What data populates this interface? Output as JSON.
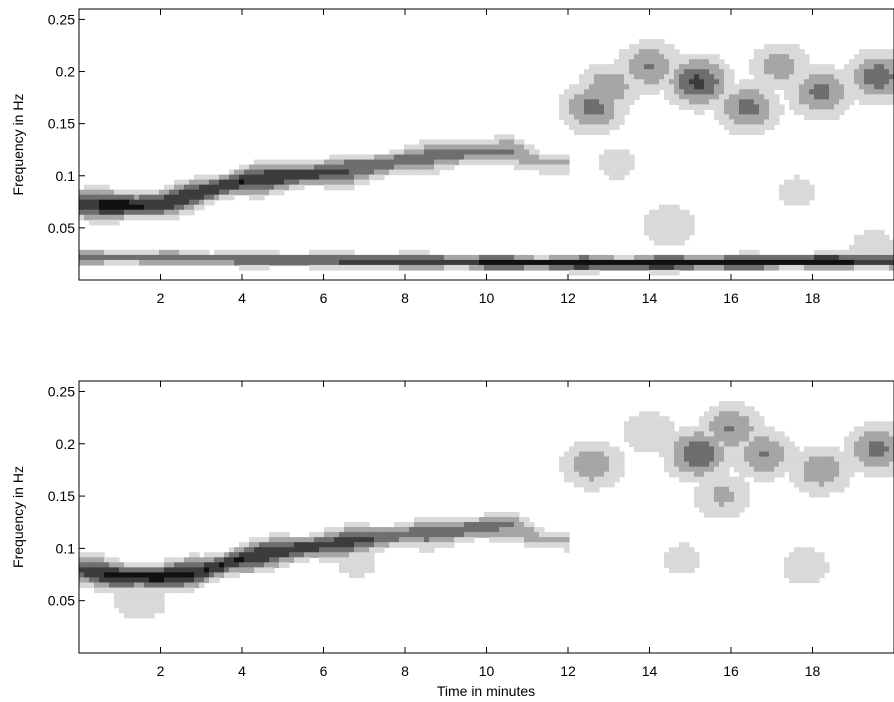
{
  "chart_data": [
    {
      "type": "heatmap",
      "subtype": "filled-contour spectrogram",
      "title": "",
      "xlabel": "",
      "ylabel": "Frequency in Hz",
      "xlim": [
        0,
        20
      ],
      "ylim": [
        0,
        0.26
      ],
      "xticks": [
        2,
        4,
        6,
        8,
        10,
        12,
        14,
        16,
        18
      ],
      "yticks": [
        0.05,
        0.1,
        0.15,
        0.2,
        0.25
      ],
      "yticklabels": [
        "0.05",
        "0.1",
        "0.15",
        "0.2",
        "0.25"
      ],
      "contour_levels": 5,
      "colormap": [
        "#ffffff",
        "#d9d9d9",
        "#a6a6a6",
        "#6e6e6e",
        "#3c3c3c",
        "#101010"
      ],
      "grid": false,
      "ridges": [
        {
          "x": [
            0,
            1,
            2,
            3,
            4,
            5,
            6,
            7,
            8,
            9,
            10,
            10.6,
            11.4
          ],
          "y": [
            0.073,
            0.071,
            0.073,
            0.084,
            0.095,
            0.099,
            0.103,
            0.107,
            0.115,
            0.12,
            0.123,
            0.124,
            0.112
          ],
          "level": [
            0.85,
            1.0,
            0.9,
            0.85,
            0.9,
            0.85,
            0.8,
            0.7,
            0.65,
            0.6,
            0.6,
            0.55,
            0.4
          ]
        },
        {
          "x": [
            0,
            2,
            4,
            6,
            8,
            10,
            12,
            14,
            16,
            18,
            20
          ],
          "y": [
            0.022,
            0.021,
            0.02,
            0.019,
            0.018,
            0.017,
            0.016,
            0.016,
            0.017,
            0.018,
            0.018
          ],
          "level": [
            0.6,
            0.65,
            0.7,
            0.75,
            0.85,
            0.9,
            0.95,
            1.0,
            1.0,
            0.95,
            0.9
          ]
        }
      ],
      "blobs": [
        {
          "x": 12.6,
          "y": 0.165,
          "level": 0.6
        },
        {
          "x": 13.0,
          "y": 0.185,
          "level": 0.5
        },
        {
          "x": 14.0,
          "y": 0.205,
          "level": 0.55
        },
        {
          "x": 15.2,
          "y": 0.19,
          "level": 0.75
        },
        {
          "x": 16.4,
          "y": 0.165,
          "level": 0.6
        },
        {
          "x": 17.2,
          "y": 0.205,
          "level": 0.45
        },
        {
          "x": 18.2,
          "y": 0.18,
          "level": 0.6
        },
        {
          "x": 19.6,
          "y": 0.195,
          "level": 0.65
        },
        {
          "x": 13.2,
          "y": 0.112,
          "level": 0.25
        },
        {
          "x": 17.6,
          "y": 0.085,
          "level": 0.25
        },
        {
          "x": 14.5,
          "y": 0.052,
          "level": 0.35
        },
        {
          "x": 19.5,
          "y": 0.03,
          "level": 0.3
        }
      ]
    },
    {
      "type": "heatmap",
      "subtype": "filled-contour spectrogram",
      "title": "",
      "xlabel": "Time in minutes",
      "ylabel": "Frequency in Hz",
      "xlim": [
        0,
        20
      ],
      "ylim": [
        0,
        0.26
      ],
      "xticks": [
        2,
        4,
        6,
        8,
        10,
        12,
        14,
        16,
        18
      ],
      "yticks": [
        0.05,
        0.1,
        0.15,
        0.2,
        0.25
      ],
      "yticklabels": [
        "0.05",
        "0.1",
        "0.15",
        "0.2",
        "0.25"
      ],
      "contour_levels": 5,
      "colormap": [
        "#ffffff",
        "#d9d9d9",
        "#a6a6a6",
        "#6e6e6e",
        "#3c3c3c",
        "#101010"
      ],
      "grid": false,
      "ridges": [
        {
          "x": [
            0,
            1,
            2,
            3,
            4,
            5,
            6,
            7,
            8,
            9,
            10,
            10.6,
            11.4
          ],
          "y": [
            0.08,
            0.073,
            0.072,
            0.078,
            0.09,
            0.098,
            0.103,
            0.108,
            0.113,
            0.116,
            0.121,
            0.122,
            0.108
          ],
          "level": [
            0.8,
            0.95,
            0.95,
            0.9,
            0.9,
            0.85,
            0.8,
            0.75,
            0.6,
            0.7,
            0.6,
            0.55,
            0.4
          ]
        }
      ],
      "blobs": [
        {
          "x": 12.6,
          "y": 0.18,
          "level": 0.5
        },
        {
          "x": 14.0,
          "y": 0.21,
          "level": 0.35
        },
        {
          "x": 15.2,
          "y": 0.19,
          "level": 0.7
        },
        {
          "x": 16.0,
          "y": 0.215,
          "level": 0.55
        },
        {
          "x": 16.8,
          "y": 0.19,
          "level": 0.55
        },
        {
          "x": 15.8,
          "y": 0.15,
          "level": 0.4
        },
        {
          "x": 18.2,
          "y": 0.175,
          "level": 0.5
        },
        {
          "x": 19.6,
          "y": 0.195,
          "level": 0.6
        },
        {
          "x": 1.5,
          "y": 0.052,
          "level": 0.35
        },
        {
          "x": 17.8,
          "y": 0.083,
          "level": 0.3
        },
        {
          "x": 14.8,
          "y": 0.09,
          "level": 0.25
        },
        {
          "x": 6.8,
          "y": 0.087,
          "level": 0.25
        }
      ]
    }
  ]
}
